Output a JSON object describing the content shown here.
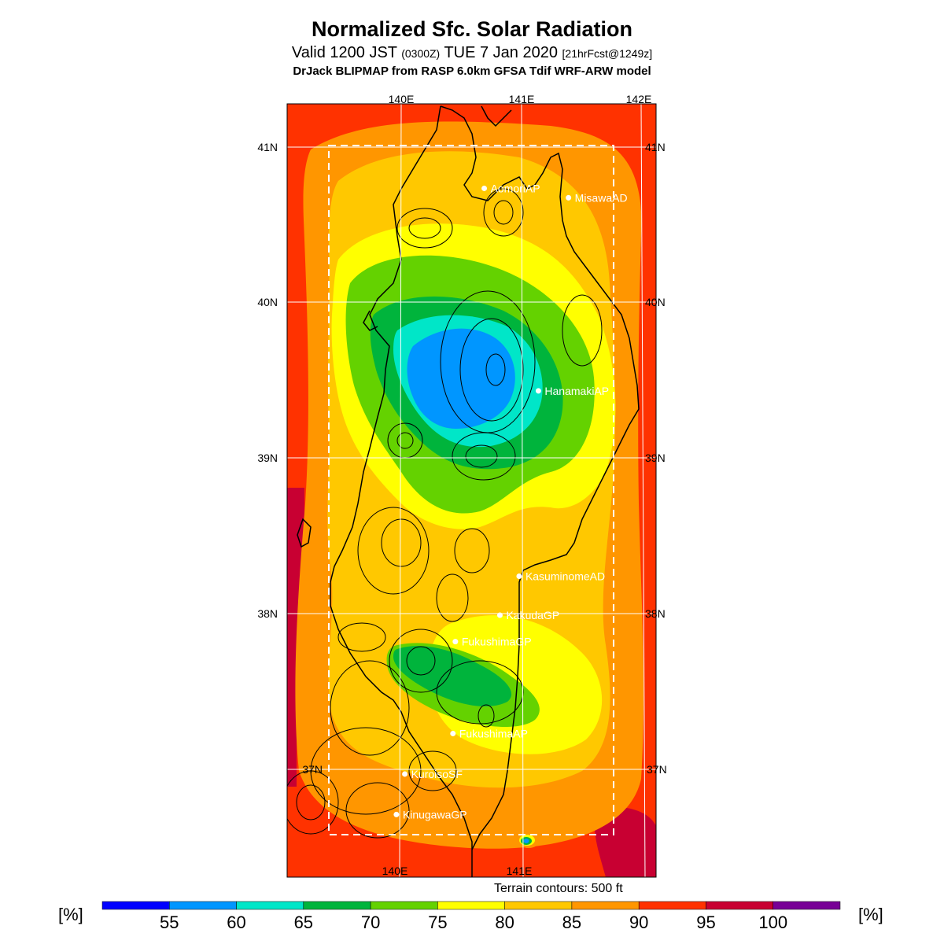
{
  "title": "Normalized Sfc. Solar Radiation",
  "subtitle": {
    "valid": "Valid 1200 JST",
    "zulu": "(0300Z)",
    "date": "TUE 7 Jan 2020",
    "forecast": "[21hrFcst@1249z]"
  },
  "model_line": "DrJack BLIPMAP from RASP 6.0km GFSA Tdif WRF-ARW model",
  "terrain_note": "Terrain contours: 500 ft",
  "lon_labels": [
    "140E",
    "141E",
    "142E"
  ],
  "lat_labels": [
    "41N",
    "40N",
    "39N",
    "38N",
    "37N"
  ],
  "stations": [
    {
      "name": "AomoriAP",
      "lon": 140.69,
      "lat": 40.73
    },
    {
      "name": "MisawaAD",
      "lon": 141.39,
      "lat": 40.67
    },
    {
      "name": "HanamakiAP",
      "lon": 141.14,
      "lat": 39.43
    },
    {
      "name": "KasuminomeAD",
      "lon": 140.98,
      "lat": 38.24
    },
    {
      "name": "KakudaGP",
      "lon": 140.82,
      "lat": 37.99
    },
    {
      "name": "FukushimaGP",
      "lon": 140.45,
      "lat": 37.82
    },
    {
      "name": "FukushimaAP",
      "lon": 140.43,
      "lat": 37.23
    },
    {
      "name": "KuroisoSF",
      "lon": 140.03,
      "lat": 36.97
    },
    {
      "name": "KinugawaGP",
      "lon": 139.96,
      "lat": 36.71
    }
  ],
  "colorbar": {
    "unit_left": "[%]",
    "unit_right": "[%]",
    "ticks": [
      "55",
      "60",
      "65",
      "70",
      "75",
      "80",
      "85",
      "90",
      "95",
      "100"
    ],
    "colors": [
      "#0000ff",
      "#0096ff",
      "#00e6c8",
      "#00b43c",
      "#64d200",
      "#ffff00",
      "#ffc800",
      "#ff9600",
      "#ff3200",
      "#c80032",
      "#780096"
    ]
  },
  "field_colors": {
    "c50": "#0000ff",
    "c55": "#0096ff",
    "c60": "#00e6c8",
    "c65": "#00b43c",
    "c70": "#64d200",
    "c75": "#ffff00",
    "c80": "#ffc800",
    "c85": "#ff9600",
    "c90": "#ff3200",
    "c95": "#c80032"
  }
}
